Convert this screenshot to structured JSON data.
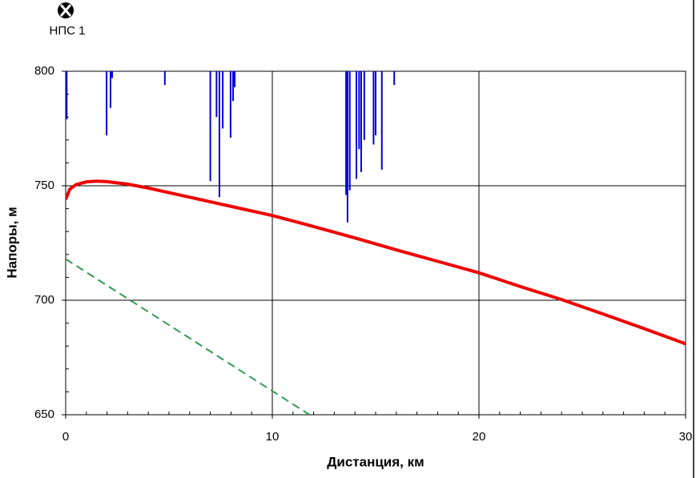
{
  "chart_data": {
    "type": "line",
    "annotation": "НПС 1",
    "xlabel": "Дистанция, км",
    "ylabel": "Напоры, м",
    "xlim": [
      0,
      30
    ],
    "xticks": [
      0,
      10,
      20,
      30
    ],
    "ylim": [
      650,
      800
    ],
    "yticks": [
      650,
      700,
      750,
      800
    ],
    "grid": true,
    "series": [
      {
        "style": "spikes",
        "color": "#0000dd",
        "width": 2,
        "x": [
          0.05,
          1.98,
          2.17,
          2.25,
          4.8,
          7.0,
          7.3,
          7.44,
          7.6,
          7.98,
          8.1,
          8.18,
          13.57,
          13.64,
          13.75,
          14.07,
          14.2,
          14.3,
          14.45,
          14.9,
          15.0,
          15.3,
          15.9
        ],
        "values": [
          779,
          772,
          784,
          797,
          794,
          752,
          780,
          745,
          775,
          771,
          787,
          793,
          746,
          734,
          748,
          753,
          766,
          756,
          770,
          768,
          772,
          757,
          794
        ]
      },
      {
        "style": "solid",
        "color": "#ee0000",
        "width": 4,
        "x": [
          0,
          0.2,
          0.5,
          1,
          1.5,
          2,
          3,
          4,
          6,
          8,
          10,
          12,
          14,
          16,
          18,
          20,
          22,
          24,
          26,
          28,
          30
        ],
        "values": [
          744,
          748.5,
          750.5,
          751.7,
          752,
          751.8,
          750.7,
          749,
          745,
          741,
          737,
          732.2,
          727.2,
          722,
          717,
          712,
          706,
          700.3,
          694,
          687.6,
          681
        ]
      },
      {
        "style": "dashed",
        "color": "#339955",
        "width": 2,
        "x": [
          0,
          11.8
        ],
        "values": [
          718,
          650
        ]
      }
    ]
  }
}
